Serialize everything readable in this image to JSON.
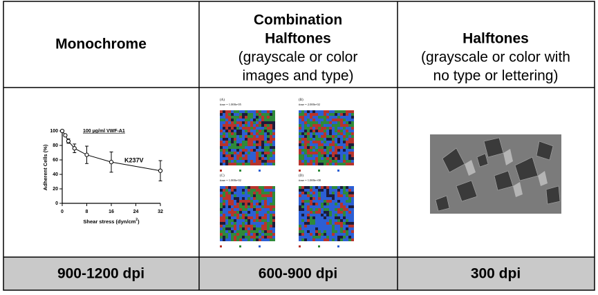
{
  "table": {
    "rows": [
      [
        {
          "title": [
            "Monochrome"
          ]
        },
        {
          "title": [
            "Combination",
            "Halftones"
          ],
          "subtitle": [
            "(grayscale or color",
            "images and type)"
          ]
        },
        {
          "title": [
            "Halftones"
          ],
          "subtitle": [
            "(grayscale or color with",
            "no type or lettering)"
          ]
        }
      ],
      [
        {
          "chart": {
            "type": "line",
            "x": [
              0,
              1,
              2,
              4,
              8,
              16,
              32
            ],
            "values": [
              100,
              94,
              86,
              76,
              67,
              57,
              45
            ],
            "errors": [
              0,
              0,
              3,
              6,
              12,
              14,
              14
            ],
            "xlim": [
              0,
              32
            ],
            "ylim": [
              0,
              100
            ],
            "xticks": [
              0,
              8,
              16,
              24,
              32
            ],
            "yticks": [
              0,
              20,
              40,
              60,
              80,
              100
            ],
            "ylabel": "Adherent Cells (%)",
            "xlabel": [
              "Shear stress (dyn/cm",
              "2",
              ")"
            ],
            "annotations": [
              "100 µg/ml VWF-A1",
              "K237V"
            ]
          }
        },
        {
          "panels": [
            {
              "label": "(A)",
              "time": "time = 1.000e-05"
            },
            {
              "label": "(B)",
              "time": "time = 2.000e-02"
            },
            {
              "label": "(C)",
              "time": "time = 1.000e-02"
            },
            {
              "label": "(D)",
              "time": "time = 1.000e+00"
            }
          ]
        },
        {}
      ],
      [
        "900-1200 dpi",
        "600-900 dpi",
        "300 dpi"
      ]
    ]
  }
}
